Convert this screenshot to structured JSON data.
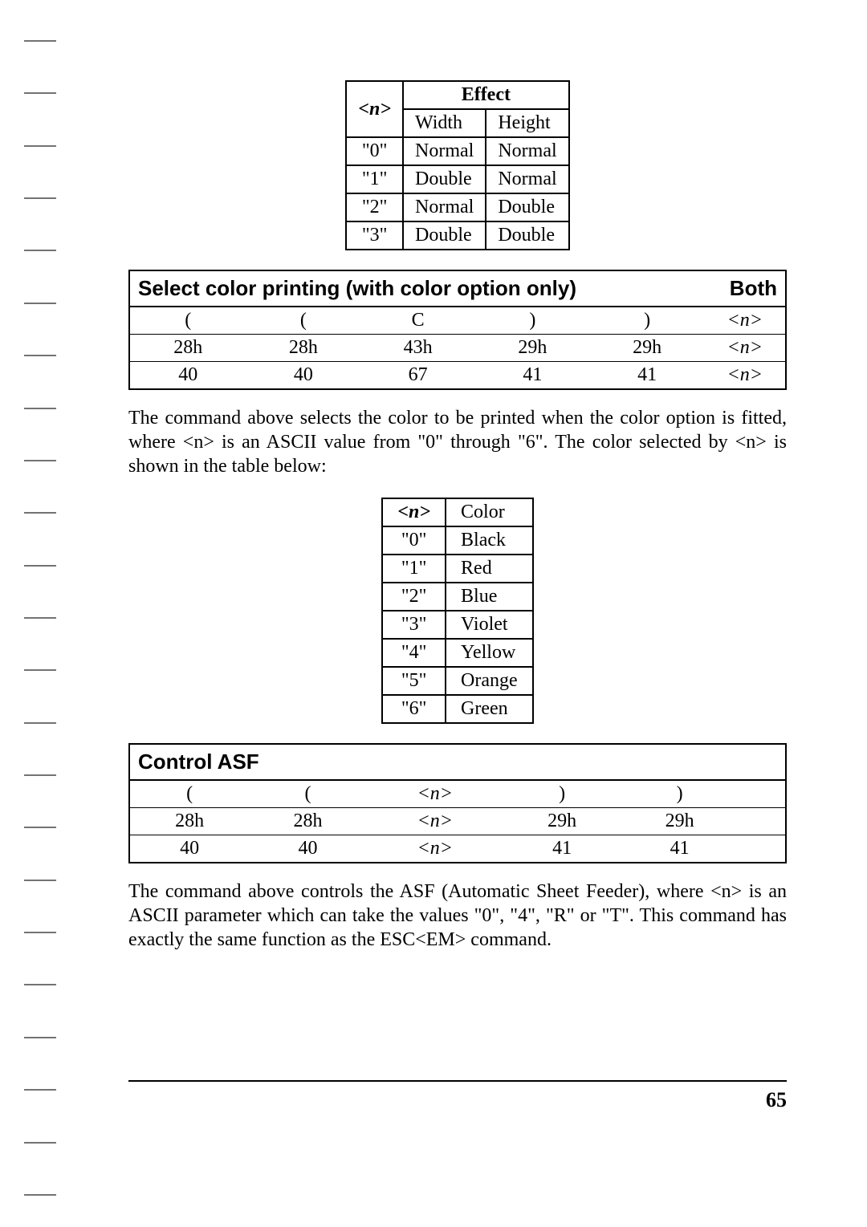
{
  "effect_table": {
    "header_n": "<n>",
    "header_effect": "Effect",
    "header_width": "Width",
    "header_height": "Height",
    "rows": [
      {
        "n": "\"0\"",
        "width": "Normal",
        "height": "Normal"
      },
      {
        "n": "\"1\"",
        "width": "Double",
        "height": "Normal"
      },
      {
        "n": "\"2\"",
        "width": "Normal",
        "height": "Double"
      },
      {
        "n": "\"3\"",
        "width": "Double",
        "height": "Double"
      }
    ]
  },
  "color_cmd": {
    "title": "Select color printing (with color option only)",
    "tag": "Both",
    "row_ascii": [
      "(",
      "(",
      "C",
      ")",
      ")",
      "<n>"
    ],
    "row_hex": [
      "28h",
      "28h",
      "43h",
      "29h",
      "29h",
      "<n>"
    ],
    "row_dec": [
      "40",
      "40",
      "67",
      "41",
      "41",
      "<n>"
    ]
  },
  "color_para": "The command above selects the color to be printed when the color option is fitted, where <n> is an ASCII value from \"0\" through \"6\". The color selected by <n> is shown in the table below:",
  "color_table": {
    "header_n": "<n>",
    "header_color": "Color",
    "rows": [
      {
        "n": "\"0\"",
        "color": "Black"
      },
      {
        "n": "\"1\"",
        "color": "Red"
      },
      {
        "n": "\"2\"",
        "color": "Blue"
      },
      {
        "n": "\"3\"",
        "color": "Violet"
      },
      {
        "n": "\"4\"",
        "color": "Yellow"
      },
      {
        "n": "\"5\"",
        "color": "Orange"
      },
      {
        "n": "\"6\"",
        "color": "Green"
      }
    ]
  },
  "asf_cmd": {
    "title": "Control ASF",
    "tag": "",
    "row_ascii": [
      "(",
      "(",
      "<n>",
      ")",
      ")",
      ""
    ],
    "row_hex": [
      "28h",
      "28h",
      "<n>",
      "29h",
      "29h",
      ""
    ],
    "row_dec": [
      "40",
      "40",
      "<n>",
      "41",
      "41",
      ""
    ]
  },
  "asf_para": "The command above controls the ASF (Automatic Sheet Feeder), where <n> is an ASCII parameter which can take the values \"0\", \"4\", \"R\" or \"T\". This command has exactly the same function as the ESC<EM> command.",
  "page_number": "65"
}
